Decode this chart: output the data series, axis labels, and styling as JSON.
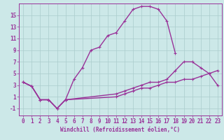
{
  "title": "",
  "xlabel": "Windchill (Refroidissement éolien,°C)",
  "bg_color": "#cce8e8",
  "grid_color": "#aacccc",
  "line_color": "#993399",
  "spine_color": "#993399",
  "xlim": [
    -0.5,
    23.5
  ],
  "ylim": [
    -2.2,
    17.0
  ],
  "xticks": [
    0,
    1,
    2,
    3,
    4,
    5,
    6,
    7,
    8,
    9,
    10,
    11,
    12,
    13,
    14,
    15,
    16,
    17,
    18,
    19,
    20,
    21,
    22,
    23
  ],
  "yticks": [
    -1,
    1,
    3,
    5,
    7,
    9,
    11,
    13,
    15
  ],
  "curve1_x": [
    0,
    1,
    2,
    3,
    4,
    5,
    6,
    7,
    8,
    9,
    10,
    11,
    12,
    13,
    14,
    15,
    16,
    17,
    18
  ],
  "curve1_y": [
    3.5,
    2.8,
    0.5,
    0.5,
    -1.0,
    0.5,
    4.0,
    6.0,
    9.0,
    9.5,
    11.5,
    12.0,
    14.0,
    16.0,
    16.5,
    16.5,
    16.0,
    14.0,
    8.5
  ],
  "curve2_x": [
    0,
    1,
    2,
    3,
    4,
    5,
    11,
    12,
    13,
    14,
    15,
    16,
    17,
    18,
    19,
    20,
    21,
    22,
    23
  ],
  "curve2_y": [
    3.5,
    2.8,
    0.5,
    0.5,
    -1.0,
    0.5,
    1.5,
    2.0,
    2.5,
    3.0,
    3.5,
    3.5,
    4.0,
    5.5,
    7.0,
    7.0,
    6.0,
    5.0,
    3.0
  ],
  "curve3_x": [
    0,
    1,
    2,
    3,
    4,
    5,
    11,
    12,
    13,
    14,
    15,
    16,
    17,
    18,
    19,
    20,
    21,
    22,
    23
  ],
  "curve3_y": [
    3.5,
    2.8,
    0.5,
    0.5,
    -1.0,
    0.5,
    1.0,
    1.5,
    2.0,
    2.5,
    2.5,
    3.0,
    3.5,
    3.5,
    4.0,
    4.0,
    4.5,
    5.0,
    5.5
  ],
  "tick_fontsize": 5.5,
  "xlabel_fontsize": 5.5
}
